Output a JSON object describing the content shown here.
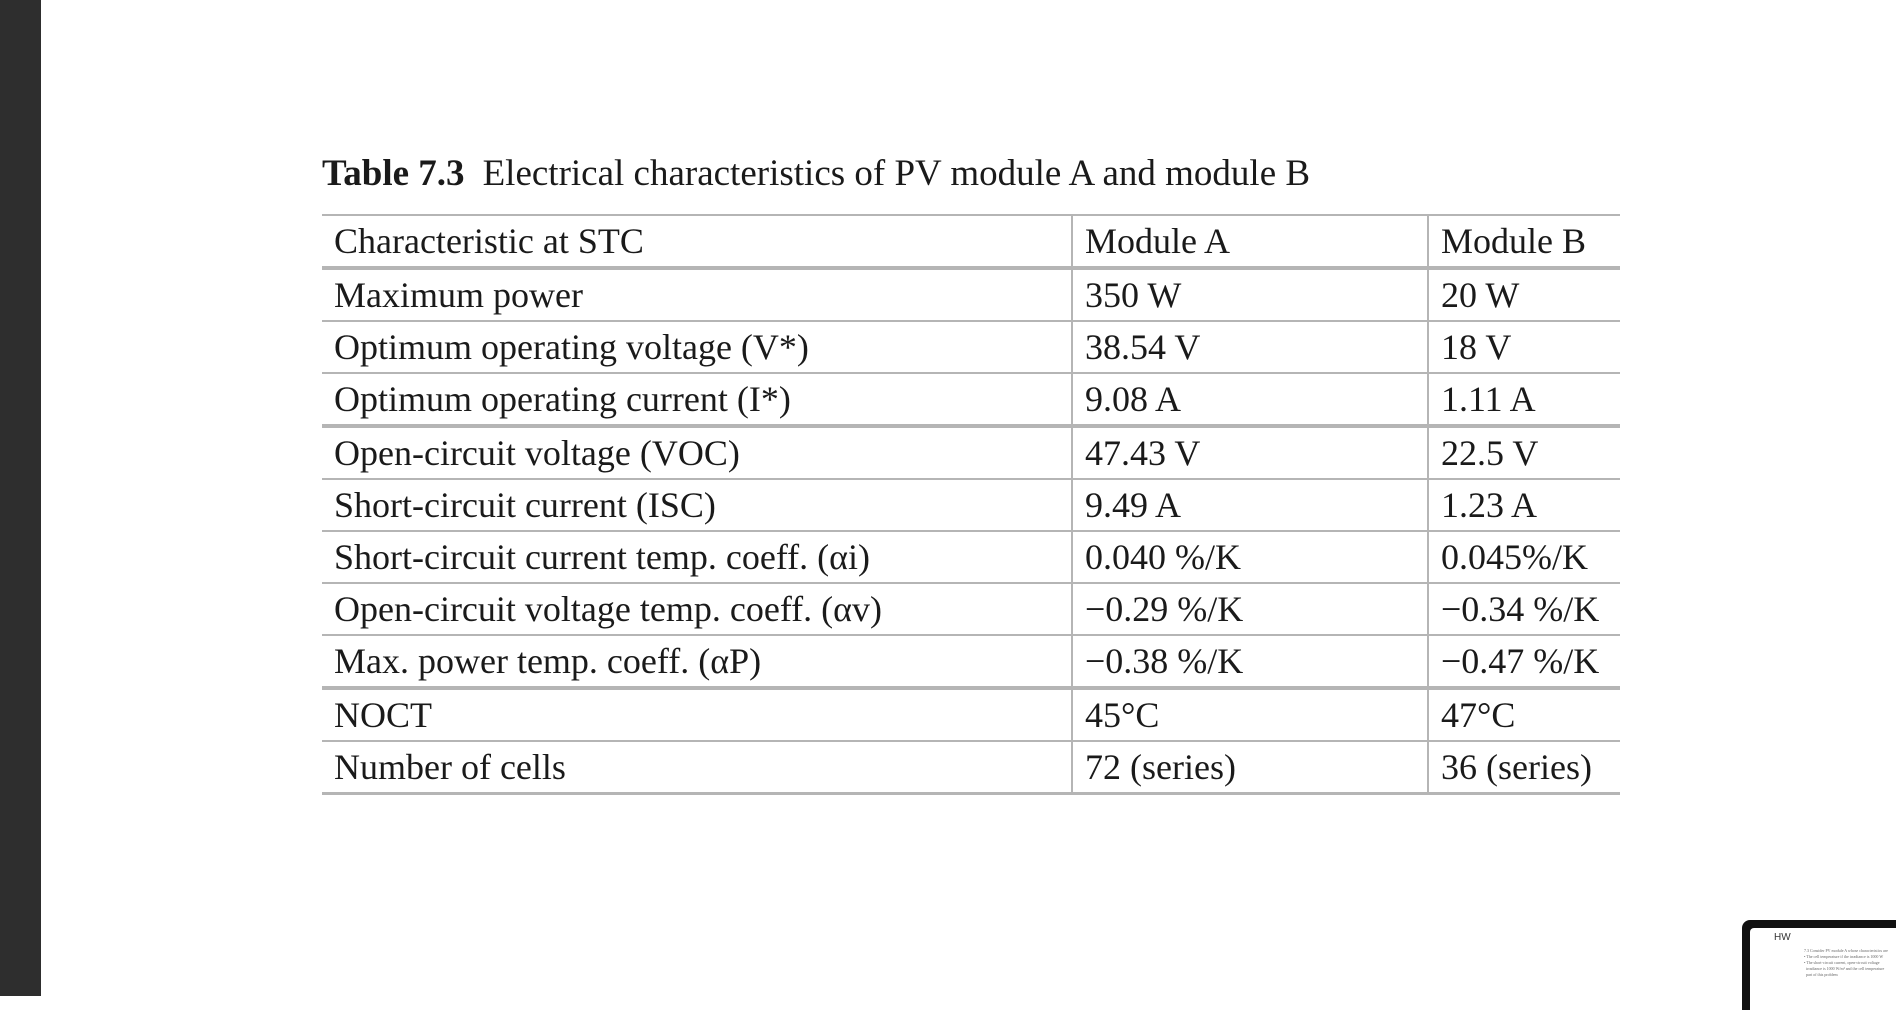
{
  "caption": {
    "number": "Table 7.3",
    "text": "Electrical characteristics of PV module A and module B"
  },
  "table": {
    "headers": [
      "Characteristic at STC",
      "Module A",
      "Module B"
    ],
    "rows": [
      {
        "label": "Maximum power",
        "a": "350 W",
        "b": "20 W"
      },
      {
        "label": "Optimum operating voltage (V*)",
        "a": "38.54 V",
        "b": "18 V"
      },
      {
        "label": "Optimum operating current (I*)",
        "a": "9.08 A",
        "b": "1.11 A"
      },
      {
        "label": "Open-circuit voltage (VOC)",
        "a": "47.43 V",
        "b": "22.5 V"
      },
      {
        "label": "Short-circuit current (ISC)",
        "a": "9.49 A",
        "b": "1.23 A"
      },
      {
        "label": "Short-circuit current temp. coeff. (αi)",
        "a": "0.040 %/K",
        "b": "0.045%/K"
      },
      {
        "label": "Open-circuit voltage temp. coeff. (αv)",
        "a": "−0.29 %/K",
        "b": "−0.34 %/K"
      },
      {
        "label": "Max. power temp. coeff. (αP)",
        "a": "−0.38 %/K",
        "b": "−0.47 %/K"
      },
      {
        "label": "NOCT",
        "a": "45°C",
        "b": "47°C"
      },
      {
        "label": "Number of cells",
        "a": "72 (series)",
        "b": "36 (series)"
      }
    ]
  },
  "thumbnail": {
    "title": "HW",
    "text": "7.3 Consider PV module A whose characteristics are\n• The cell temperature if the irradiance is 1000 W\n• The short-circuit current, open-circuit voltage\n  irradiance is 1000 W/m² and the cell temperature\n  part of this problem"
  }
}
